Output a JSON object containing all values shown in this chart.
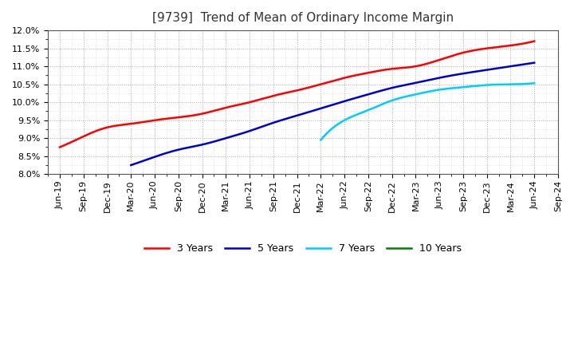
{
  "title": "[9739]  Trend of Mean of Ordinary Income Margin",
  "ylim": [
    0.08,
    0.12
  ],
  "yticks": [
    0.08,
    0.085,
    0.09,
    0.095,
    0.1,
    0.105,
    0.11,
    0.115,
    0.12
  ],
  "background_color": "#ffffff",
  "grid_color": "#aaaaaa",
  "series": [
    {
      "label": "3 Years",
      "color": "#ff0000",
      "linewidth": 1.8,
      "xs": [
        0,
        1,
        2,
        3,
        4,
        5,
        6,
        7,
        8,
        9,
        10,
        11,
        12,
        13,
        14,
        15,
        16,
        17,
        18,
        19,
        20
      ],
      "ys": [
        0.0875,
        0.0905,
        0.093,
        0.094,
        0.095,
        0.0958,
        0.0968,
        0.0985,
        0.1,
        0.1018,
        0.1033,
        0.105,
        0.1068,
        0.1082,
        0.1093,
        0.11,
        0.1118,
        0.1138,
        0.115,
        0.1158,
        0.117
      ]
    },
    {
      "label": "5 Years",
      "color": "#0000cc",
      "linewidth": 1.8,
      "xs": [
        3,
        4,
        5,
        6,
        7,
        8,
        9,
        10,
        11,
        12,
        13,
        14,
        15,
        16,
        17,
        18,
        19,
        20
      ],
      "ys": [
        0.0825,
        0.0848,
        0.0868,
        0.0882,
        0.09,
        0.092,
        0.0943,
        0.0963,
        0.0983,
        0.1003,
        0.1022,
        0.104,
        0.1054,
        0.1068,
        0.108,
        0.109,
        0.11,
        0.111
      ]
    },
    {
      "label": "7 Years",
      "color": "#00ccff",
      "linewidth": 1.8,
      "xs": [
        11,
        12,
        13,
        14,
        15,
        16,
        17,
        18,
        19,
        20
      ],
      "ys": [
        0.0895,
        0.095,
        0.0978,
        0.1005,
        0.1022,
        0.1035,
        0.1042,
        0.1048,
        0.105,
        0.1053
      ]
    },
    {
      "label": "10 Years",
      "color": "#008000",
      "linewidth": 1.8,
      "xs": [],
      "ys": []
    }
  ],
  "xtick_labels": [
    "Jun-19",
    "Sep-19",
    "Dec-19",
    "Mar-20",
    "Jun-20",
    "Sep-20",
    "Dec-20",
    "Mar-21",
    "Jun-21",
    "Sep-21",
    "Dec-21",
    "Mar-22",
    "Jun-22",
    "Sep-22",
    "Dec-22",
    "Mar-23",
    "Jun-23",
    "Sep-23",
    "Dec-23",
    "Mar-24",
    "Jun-24",
    "Sep-24"
  ],
  "title_fontsize": 11,
  "legend_fontsize": 9,
  "tick_fontsize": 8
}
